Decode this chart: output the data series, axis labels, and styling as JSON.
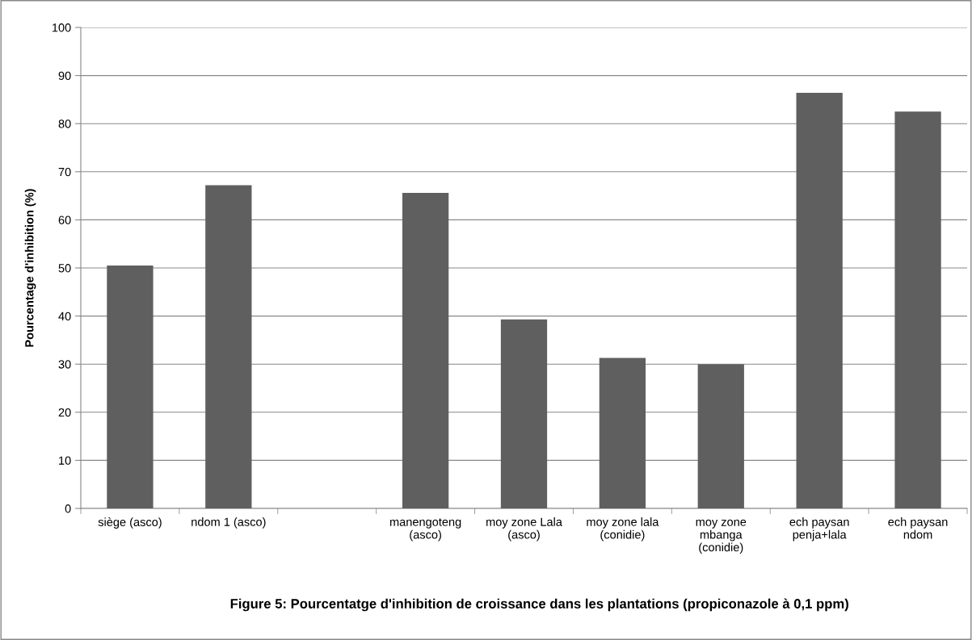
{
  "chart_data": {
    "type": "bar",
    "title": "Figure 5: Pourcentatge d'inhibition de croissance dans les plantations (propiconazole à 0,1 ppm)",
    "ylabel": "Pourcentage d'inhibition (%)",
    "categories": [
      "siège (asco)",
      "ndom 1 (asco)",
      null,
      "manengoteng\n(asco)",
      "moy zone Lala\n(asco)",
      "moy zone lala\n(conidie)",
      "moy zone\nmbanga\n(conidie)",
      "ech paysan\npenja+lala",
      "ech paysan\nndom"
    ],
    "values": [
      50.5,
      67.2,
      null,
      65.6,
      39.3,
      31.3,
      30.0,
      86.4,
      82.5
    ],
    "color": "#5f5f5f",
    "ylim": [
      0,
      100
    ],
    "yticks": [
      0,
      10,
      20,
      30,
      40,
      50,
      60,
      70,
      80,
      90,
      100
    ],
    "grid": "y",
    "legend": false
  }
}
